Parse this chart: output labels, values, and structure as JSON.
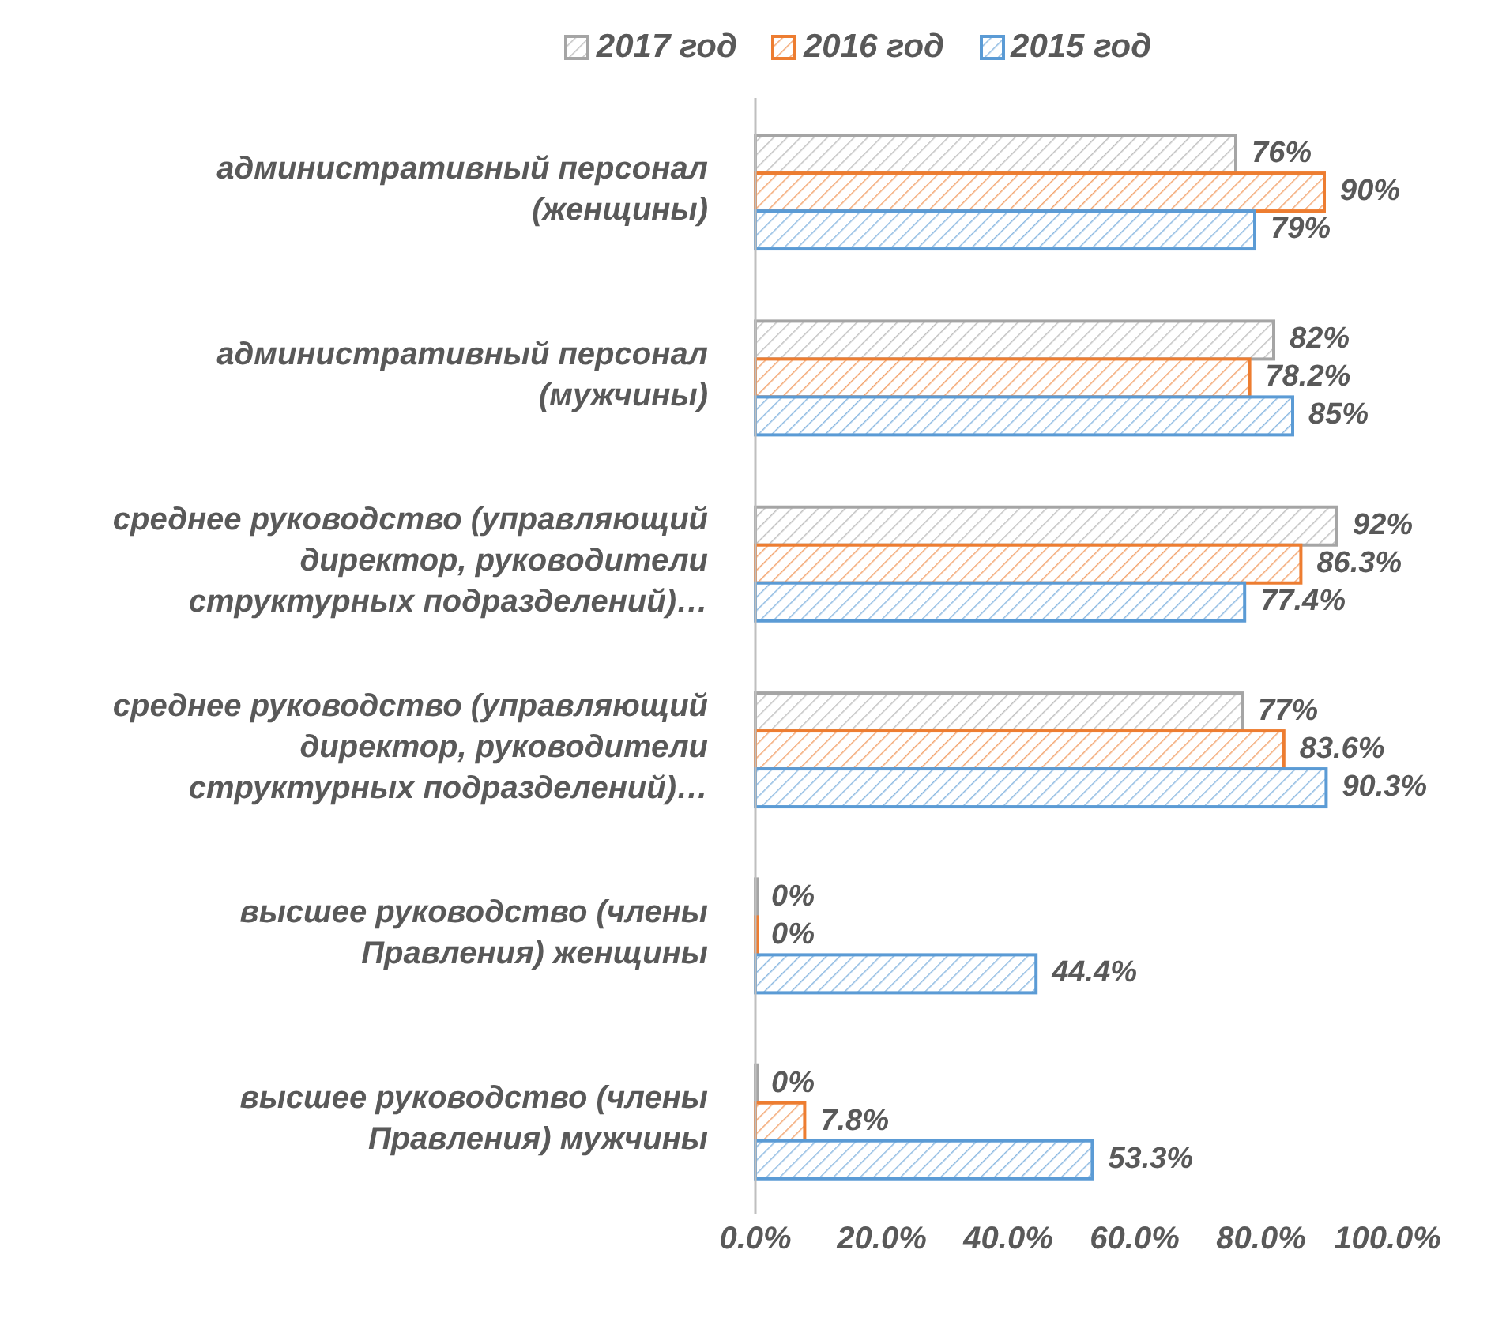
{
  "chart_data": {
    "type": "bar",
    "orientation": "horizontal",
    "categories": [
      "административный персонал (женщины)",
      "административный персонал (мужчины)",
      "среднее руководство (управляющий директор, руководители структурных подразделений)…",
      "среднее руководство (управляющий директор, руководители структурных подразделений)…",
      "высшее руководство (члены Правления) женщины",
      "высшее руководство (члены Правления) мужчины"
    ],
    "series": [
      {
        "name": "2017 год",
        "color": "#a5a5a5",
        "values": [
          76,
          82,
          92,
          77,
          0,
          0
        ],
        "value_labels": [
          "76%",
          "82%",
          "92%",
          "77%",
          "0%",
          "0%"
        ]
      },
      {
        "name": "2016 год",
        "color": "#ed7d31",
        "values": [
          90,
          78.2,
          86.3,
          83.6,
          0,
          7.8
        ],
        "value_labels": [
          "90%",
          "78.2%",
          "86.3%",
          "83.6%",
          "0%",
          "7.8%"
        ]
      },
      {
        "name": "2015 год",
        "color": "#5b9bd5",
        "values": [
          79,
          85,
          77.4,
          90.3,
          44.4,
          53.3
        ],
        "value_labels": [
          "79%",
          "85%",
          "77.4%",
          "90.3%",
          "44.4%",
          "53.3%"
        ]
      }
    ],
    "xlim": [
      0,
      100
    ],
    "xticks": [
      {
        "value": 0,
        "label": "0.0%"
      },
      {
        "value": 20,
        "label": "20.0%"
      },
      {
        "value": 40,
        "label": "40.0%"
      },
      {
        "value": 60,
        "label": "60.0%"
      },
      {
        "value": 80,
        "label": "80.0%"
      },
      {
        "value": 100,
        "label": "100.0%"
      }
    ],
    "legend": "top",
    "grid": false
  }
}
